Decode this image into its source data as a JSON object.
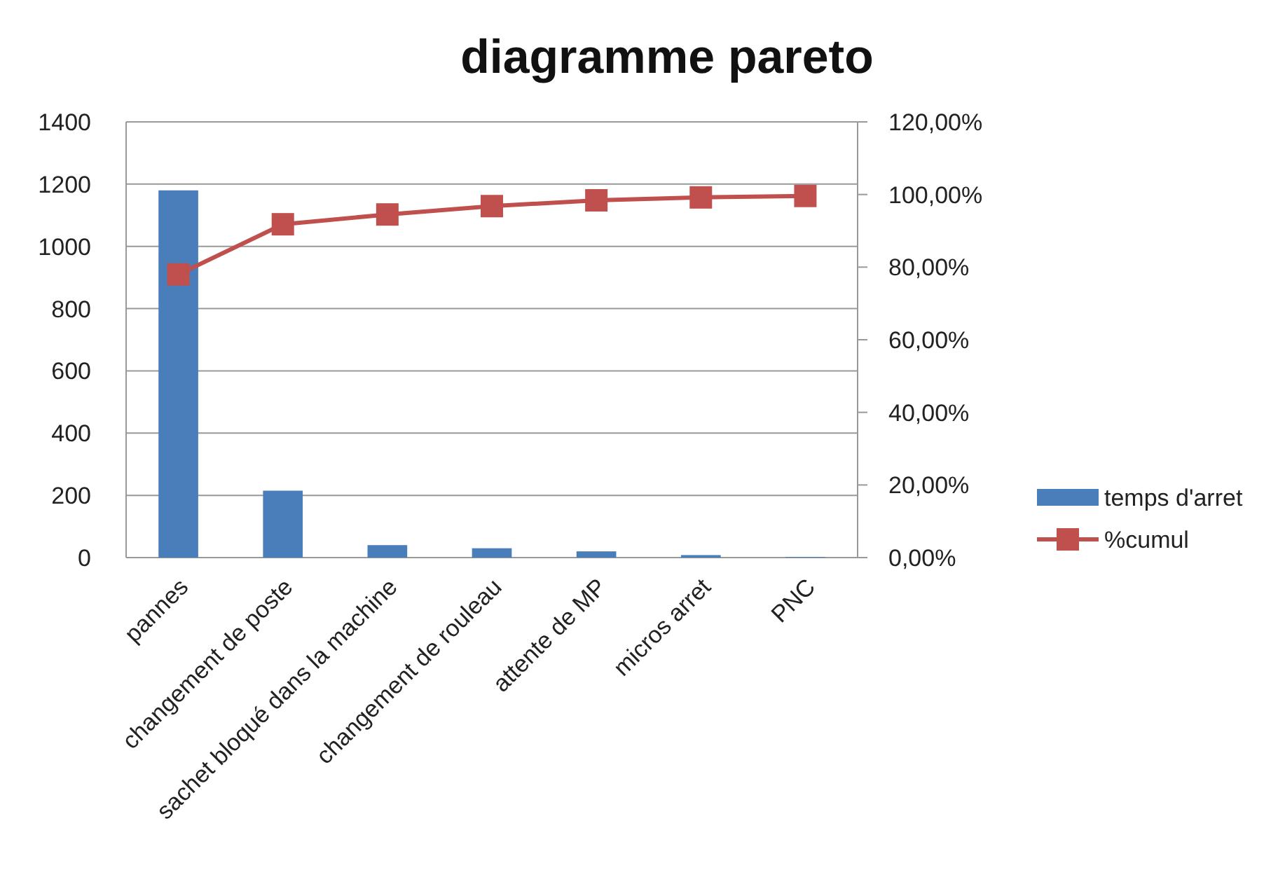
{
  "chart_data": {
    "type": "bar",
    "title": "diagramme pareto",
    "categories": [
      "pannes",
      "changement de poste",
      "sachet bloqué dans la machine",
      "changement de rouleau",
      "attente de MP",
      "micros arret",
      "PNC"
    ],
    "series": [
      {
        "name": "temps d'arret",
        "color": "#4a7ebb",
        "values": [
          1180,
          215,
          40,
          30,
          20,
          8,
          2
        ]
      },
      {
        "name": "%cumul",
        "type": "line",
        "axis": "y2",
        "color": "#c0504d",
        "marker": "square",
        "values": [
          78,
          91.8,
          94.5,
          96.8,
          98.4,
          99.2,
          99.6
        ]
      }
    ],
    "ylim": [
      0,
      1400
    ],
    "yticks": [
      0,
      200,
      400,
      600,
      800,
      1000,
      1200,
      1400
    ],
    "y2lim": [
      0,
      120
    ],
    "y2ticks": [
      {
        "value": 0,
        "label": "0,00%"
      },
      {
        "value": 20,
        "label": "20,00%"
      },
      {
        "value": 40,
        "label": "40,00%"
      },
      {
        "value": 60,
        "label": "60,00%"
      },
      {
        "value": 80,
        "label": "80,00%"
      },
      {
        "value": 100,
        "label": "100,00%"
      },
      {
        "value": 120,
        "label": "120,00%"
      }
    ],
    "grid": "y",
    "legend": "right"
  }
}
